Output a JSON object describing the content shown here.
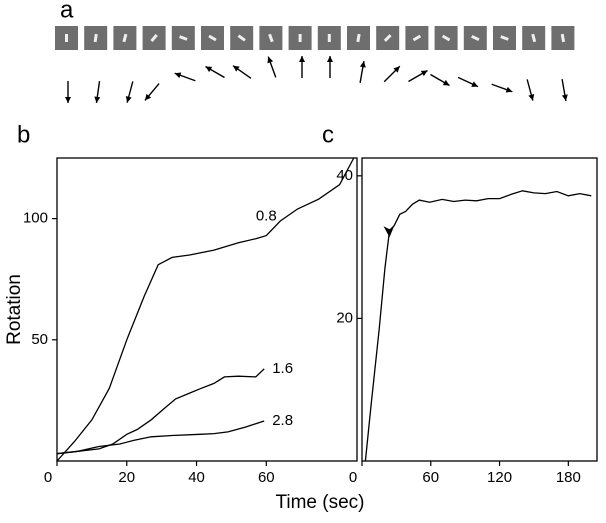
{
  "panel_a": {
    "label": "a"
  },
  "xlabel": "Time (sec)",
  "chart_data": [
    {
      "type": "line",
      "title": "b",
      "ylabel": "Rotation",
      "xlim": [
        0,
        86
      ],
      "ylim": [
        0,
        125
      ],
      "xticks": [
        0,
        20,
        40,
        60
      ],
      "yticks": [
        50,
        100
      ],
      "series": [
        {
          "name": "0.8",
          "color": "#000000",
          "x": [
            0,
            5,
            10,
            15,
            20,
            25,
            29,
            33,
            38,
            45,
            52,
            57,
            60,
            64,
            69,
            75,
            81,
            85
          ],
          "values": [
            0,
            8,
            17,
            30,
            50,
            68,
            81,
            84,
            85,
            87,
            90,
            91.7,
            93,
            99,
            104,
            108,
            114,
            124.8
          ]
        },
        {
          "name": "1.6",
          "color": "#000000",
          "x": [
            0,
            6,
            12,
            16,
            20,
            23,
            27,
            31,
            34,
            38,
            41,
            45,
            48,
            52,
            57,
            59.4
          ],
          "values": [
            3,
            4,
            5,
            7,
            11,
            13,
            17,
            22,
            25.6,
            28,
            29.8,
            32,
            34.7,
            35,
            34.7,
            38
          ]
        },
        {
          "name": "2.8",
          "color": "#000000",
          "x": [
            0,
            6,
            12,
            18,
            22,
            27,
            33,
            41,
            45,
            49,
            54,
            59.4
          ],
          "values": [
            3,
            4,
            6,
            7,
            8.5,
            10,
            10.5,
            11,
            11.3,
            12,
            14,
            16.5
          ]
        }
      ]
    },
    {
      "type": "line",
      "title": "c",
      "xlim": [
        0,
        205
      ],
      "ylim": [
        0,
        42.5
      ],
      "xticks": [
        0,
        60,
        120
      ],
      "yticks": [
        20,
        40
      ],
      "xticks_extra": [
        180
      ],
      "series": [
        {
          "name": null,
          "color": "#000000",
          "x": [
            3,
            8,
            15,
            20,
            24,
            28,
            33,
            38,
            44,
            50,
            59,
            70,
            80,
            90,
            100,
            110,
            120,
            130,
            140,
            150,
            160,
            170,
            180,
            190,
            200
          ],
          "values": [
            0,
            8,
            18.5,
            27,
            32.3,
            33,
            34.6,
            35,
            36,
            36.6,
            36.3,
            36.7,
            36.4,
            36.6,
            36.5,
            36.8,
            36.8,
            37.4,
            37.9,
            37.6,
            37.5,
            37.8,
            37.2,
            37.5,
            37.2
          ]
        }
      ]
    }
  ]
}
